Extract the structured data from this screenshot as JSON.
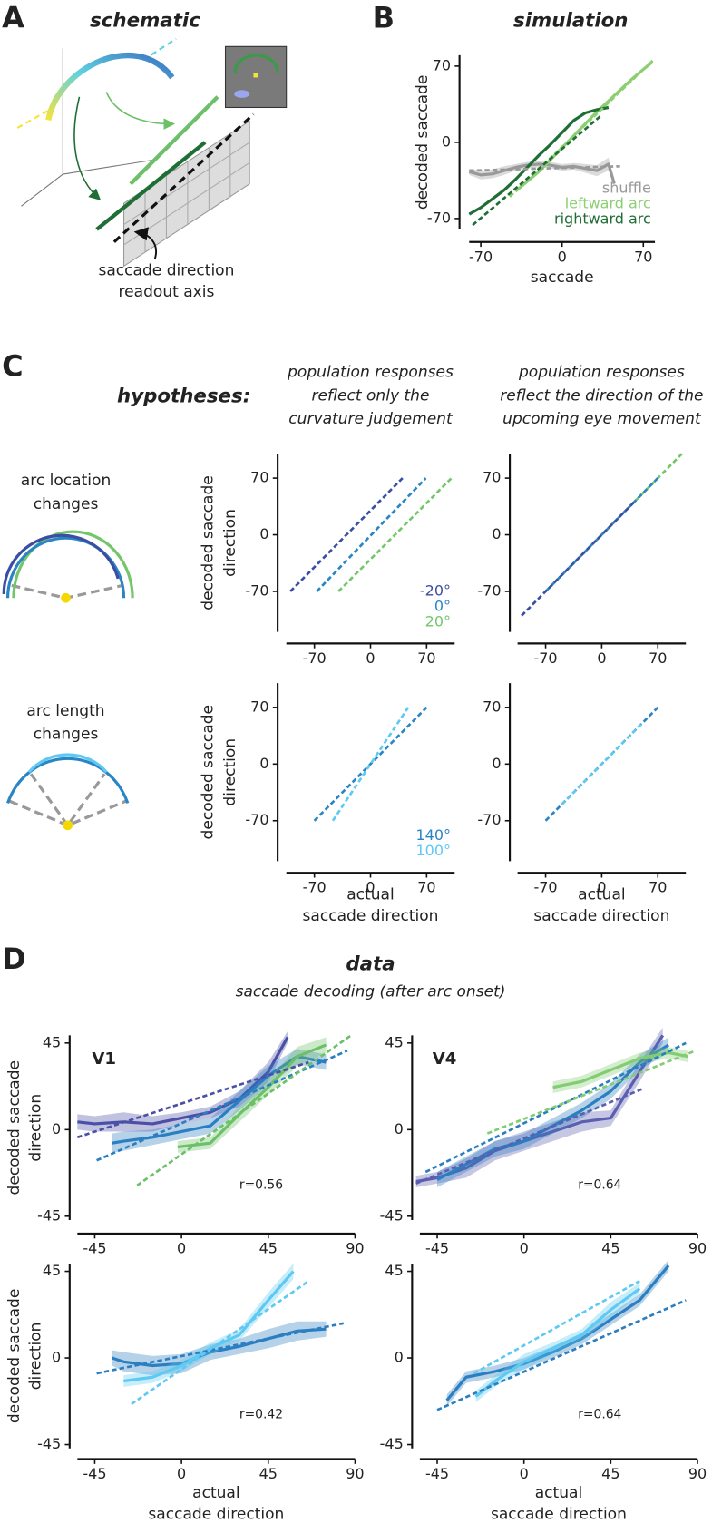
{
  "panel_labels": [
    "A",
    "B",
    "C",
    "D"
  ],
  "schematic": {
    "title": "schematic",
    "readout": [
      "saccade direction",
      "readout axis"
    ]
  },
  "hypotheses": {
    "title": "hypotheses:",
    "columns": [
      [
        "population responses",
        "reflect only the",
        "curvature judgement"
      ],
      [
        "population responses",
        "reflect the direction of  the",
        "upcoming eye movement"
      ]
    ],
    "rows": [
      [
        "arc location",
        "changes"
      ],
      [
        "arc length",
        "changes"
      ]
    ]
  },
  "data_header": {
    "title": "data",
    "subtitle": "saccade decoding (after arc onset)"
  },
  "chart_data": [
    {
      "type": "line",
      "title": "simulation",
      "ylabel": [
        "decoded saccade"
      ],
      "xlabel": [
        "saccade"
      ],
      "xlim": [
        -80,
        80
      ],
      "ylim": [
        -80,
        80
      ],
      "xticks": [
        -70,
        0,
        70
      ],
      "yticks": [
        -70,
        0,
        70
      ],
      "legend": "lower right",
      "series": [
        {
          "name": "shuffle",
          "color": "#999999",
          "x": [
            -80,
            -70,
            -60,
            -50,
            -40,
            -30,
            -20,
            -10,
            0,
            10,
            20,
            30,
            40,
            45
          ],
          "values": [
            -27,
            -30,
            -29,
            -26,
            -23,
            -21,
            -20,
            -21,
            -23,
            -22,
            -24,
            -26,
            -20,
            -38
          ],
          "error": [
            3,
            4,
            4,
            4,
            3,
            3,
            3,
            3,
            3,
            3,
            4,
            5,
            6,
            3
          ]
        },
        {
          "name": "leftward arc",
          "color": "#8ccf72",
          "x": [
            -40,
            -30,
            -20,
            -10,
            0,
            10,
            20,
            30,
            40,
            50,
            60,
            70,
            78
          ],
          "values": [
            -45,
            -36,
            -27,
            -16,
            -5,
            6,
            17,
            28,
            38,
            48,
            58,
            67,
            74
          ]
        },
        {
          "name": "rightward arc",
          "color": "#1f6e35",
          "x": [
            -80,
            -70,
            -60,
            -50,
            -40,
            -30,
            -20,
            -10,
            0,
            10,
            20,
            30,
            40
          ],
          "values": [
            -66,
            -60,
            -52,
            -44,
            -34,
            -23,
            -12,
            -2,
            9,
            20,
            27,
            30,
            32
          ]
        },
        {
          "color": "#999999",
          "x": [
            -80,
            50
          ],
          "values": [
            -26,
            -22
          ],
          "dashed": true
        },
        {
          "color": "#8ccf72",
          "x": [
            -45,
            78
          ],
          "values": [
            -50,
            75
          ],
          "dashed": true
        },
        {
          "color": "#1f6e35",
          "x": [
            -77,
            33
          ],
          "values": [
            -76,
            24
          ],
          "dashed": true
        }
      ]
    },
    {
      "type": "line",
      "ylabel": [
        "decoded saccade",
        "direction"
      ],
      "xlim": [
        -105,
        105
      ],
      "ylim": [
        -120,
        100
      ],
      "xticks": [
        -70,
        0,
        70
      ],
      "yticks": [
        -70,
        0,
        70
      ],
      "legend": "lower right",
      "series": [
        {
          "name": "-20°",
          "color": "#3b4ea3",
          "x": [
            -100,
            40
          ],
          "values": [
            -70,
            70
          ],
          "dashed": true
        },
        {
          "name": "0°",
          "color": "#2a85c5",
          "x": [
            -67,
            69
          ],
          "values": [
            -70,
            70
          ],
          "dashed": true
        },
        {
          "name": "20°",
          "color": "#74c66a",
          "x": [
            -40,
            101
          ],
          "values": [
            -70,
            70
          ],
          "dashed": true
        }
      ]
    },
    {
      "type": "line",
      "xlim": [
        -105,
        105
      ],
      "ylim": [
        -120,
        100
      ],
      "xticks": [
        -70,
        0,
        70
      ],
      "yticks": [
        -70,
        0,
        70
      ],
      "series": [
        {
          "color": "#74c66a",
          "x": [
            -40,
            100
          ],
          "values": [
            -40,
            100
          ],
          "dashed": true
        },
        {
          "color": "#2a85c5",
          "x": [
            -70,
            70
          ],
          "values": [
            -70,
            70
          ],
          "dashed": true
        },
        {
          "color": "#3b4ea3",
          "x": [
            -100,
            40
          ],
          "values": [
            -100,
            40
          ],
          "dashed": true
        }
      ]
    },
    {
      "type": "line",
      "ylabel": [
        "decoded saccade",
        "direction"
      ],
      "xlabel": [
        "actual",
        "saccade direction"
      ],
      "xlim": [
        -105,
        105
      ],
      "ylim": [
        -120,
        100
      ],
      "xticks": [
        -70,
        0,
        70
      ],
      "yticks": [
        -70,
        0,
        70
      ],
      "legend": "lower right",
      "series": [
        {
          "name": "140°",
          "color": "#2a85c5",
          "x": [
            -70,
            70
          ],
          "values": [
            -70,
            70
          ],
          "dashed": true
        },
        {
          "name": "100°",
          "color": "#5ec9f2",
          "x": [
            -47,
            47
          ],
          "values": [
            -70,
            70
          ],
          "dashed": true
        }
      ]
    },
    {
      "type": "line",
      "xlabel": [
        "actual",
        "saccade direction"
      ],
      "xlim": [
        -105,
        105
      ],
      "ylim": [
        -120,
        100
      ],
      "xticks": [
        -70,
        0,
        70
      ],
      "yticks": [
        -70,
        0,
        70
      ],
      "series": [
        {
          "color": "#2a85c5",
          "x": [
            -70,
            70
          ],
          "values": [
            -70,
            70
          ],
          "dashed": true
        },
        {
          "color": "#5ec9f2",
          "x": [
            -50,
            50
          ],
          "values": [
            -50,
            50
          ],
          "dashed": true
        }
      ]
    },
    {
      "type": "line",
      "title": "V1",
      "ylabel": [
        "decoded saccade",
        "direction"
      ],
      "annotation": "r=0.56",
      "xlim": [
        -54,
        90
      ],
      "ylim": [
        -47,
        49
      ],
      "xticks": [
        -45,
        0,
        45,
        90
      ],
      "yticks": [
        -45,
        0,
        45
      ],
      "series": [
        {
          "color": "#4a50a6",
          "x": [
            -54,
            -45,
            -30,
            -15,
            0,
            15,
            30,
            45,
            55
          ],
          "values": [
            4,
            3,
            4,
            3,
            6,
            9,
            16,
            30,
            48
          ],
          "error": [
            4,
            4,
            5,
            4,
            3,
            3,
            4,
            5,
            3
          ]
        },
        {
          "color": "#2b7fc1",
          "x": [
            -36,
            -30,
            -15,
            0,
            15,
            30,
            45,
            60,
            75
          ],
          "values": [
            -7,
            -6,
            -4,
            -1,
            2,
            15,
            28,
            38,
            35
          ],
          "error": [
            5,
            5,
            4,
            4,
            4,
            5,
            5,
            4,
            4
          ]
        },
        {
          "color": "#6cc068",
          "x": [
            -2,
            15,
            30,
            45,
            60,
            75
          ],
          "values": [
            -9,
            -7,
            8,
            22,
            38,
            44
          ],
          "error": [
            3,
            3,
            4,
            4,
            5,
            4
          ]
        },
        {
          "color": "#4a50a6",
          "x": [
            -54,
            66
          ],
          "values": [
            -4,
            35
          ],
          "dashed": true
        },
        {
          "color": "#2b7fc1",
          "x": [
            -44,
            86
          ],
          "values": [
            -16,
            41
          ],
          "dashed": true
        },
        {
          "color": "#6cc068",
          "x": [
            -23,
            88
          ],
          "values": [
            -29,
            49
          ],
          "dashed": true
        }
      ]
    },
    {
      "type": "line",
      "title": "V4",
      "annotation": "r=0.64",
      "xlim": [
        -54,
        90
      ],
      "ylim": [
        -47,
        49
      ],
      "xticks": [
        -45,
        0,
        45,
        90
      ],
      "yticks": [
        -45,
        0,
        45
      ],
      "series": [
        {
          "color": "#5c5fb0",
          "x": [
            -56,
            -45,
            -30,
            -15,
            0,
            15,
            30,
            45,
            60,
            72
          ],
          "values": [
            -27,
            -25,
            -20,
            -11,
            -6,
            -1,
            4,
            6,
            30,
            49
          ],
          "error": [
            3,
            3,
            5,
            5,
            5,
            5,
            5,
            4,
            5,
            4
          ]
        },
        {
          "color": "#2b7fc1",
          "x": [
            -45,
            -30,
            -15,
            0,
            15,
            30,
            45,
            60,
            75
          ],
          "values": [
            -26,
            -18,
            -10,
            -6,
            2,
            10,
            20,
            35,
            44
          ],
          "error": [
            4,
            4,
            4,
            4,
            4,
            4,
            4,
            4,
            4
          ]
        },
        {
          "color": "#82cc72",
          "x": [
            15,
            30,
            45,
            60,
            75,
            85
          ],
          "values": [
            22,
            25,
            31,
            37,
            40,
            38
          ],
          "error": [
            3,
            3,
            3,
            3,
            3,
            3
          ]
        },
        {
          "color": "#5c5fb0",
          "x": [
            -56,
            61
          ],
          "values": [
            -28,
            21
          ],
          "dashed": true
        },
        {
          "color": "#2b7fc1",
          "x": [
            -51,
            84
          ],
          "values": [
            -22,
            45
          ],
          "dashed": true
        },
        {
          "color": "#82cc72",
          "x": [
            -19,
            89
          ],
          "values": [
            -2,
            41
          ],
          "dashed": true
        }
      ]
    },
    {
      "type": "line",
      "ylabel": [
        "decoded saccade",
        "direction"
      ],
      "xlabel": [
        "actual",
        "saccade direction"
      ],
      "annotation": "r=0.42",
      "xlim": [
        -54,
        90
      ],
      "ylim": [
        -47,
        49
      ],
      "xticks": [
        -45,
        0,
        45,
        90
      ],
      "yticks": [
        -45,
        0,
        45
      ],
      "series": [
        {
          "color": "#2b7fc1",
          "x": [
            -36,
            -30,
            -15,
            0,
            15,
            30,
            45,
            60,
            75
          ],
          "values": [
            0,
            -2,
            -4,
            -3,
            3,
            6,
            10,
            14,
            15
          ],
          "error": [
            4,
            5,
            5,
            5,
            4,
            4,
            5,
            5,
            4
          ]
        },
        {
          "color": "#5ec9f2",
          "x": [
            -30,
            -15,
            0,
            15,
            30,
            45,
            58
          ],
          "values": [
            -12,
            -10,
            -4,
            5,
            12,
            30,
            45
          ],
          "error": [
            3,
            3,
            3,
            3,
            3,
            4,
            4
          ]
        },
        {
          "color": "#2b7fc1",
          "x": [
            -44,
            84
          ],
          "values": [
            -8,
            18
          ],
          "dashed": true
        },
        {
          "color": "#5ec9f2",
          "x": [
            -26,
            66
          ],
          "values": [
            -24,
            40
          ],
          "dashed": true
        }
      ]
    },
    {
      "type": "line",
      "xlabel": [
        "actual",
        "saccade direction"
      ],
      "annotation": "r=0.64",
      "xlim": [
        -54,
        90
      ],
      "ylim": [
        -47,
        49
      ],
      "xticks": [
        -45,
        0,
        45,
        90
      ],
      "yticks": [
        -45,
        0,
        45
      ],
      "series": [
        {
          "color": "#2b7fc1",
          "x": [
            -40,
            -30,
            -15,
            0,
            15,
            30,
            45,
            60,
            75
          ],
          "values": [
            -22,
            -10,
            -7,
            -3,
            3,
            10,
            20,
            30,
            48
          ],
          "error": [
            3,
            3,
            3,
            3,
            3,
            3,
            3,
            3,
            3
          ]
        },
        {
          "color": "#5ec9f2",
          "x": [
            -25,
            -15,
            0,
            15,
            30,
            45,
            60
          ],
          "values": [
            -20,
            -12,
            -2,
            5,
            12,
            25,
            36
          ],
          "error": [
            3,
            3,
            4,
            3,
            3,
            4,
            3
          ]
        },
        {
          "color": "#2b7fc1",
          "x": [
            -45,
            84
          ],
          "values": [
            -27,
            30
          ],
          "dashed": true
        },
        {
          "color": "#5ec9f2",
          "x": [
            -26,
            60
          ],
          "values": [
            -8,
            40
          ],
          "dashed": true
        }
      ]
    }
  ]
}
